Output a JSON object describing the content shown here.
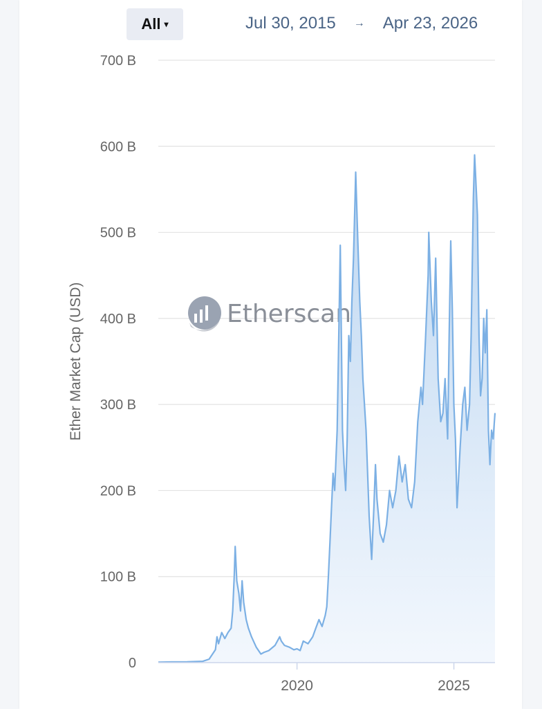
{
  "toolbar": {
    "range_label": "All",
    "range_caret": "▾",
    "date_from": "Jul 30, 2015",
    "date_arrow": "→",
    "date_to": "Apr 23, 2026"
  },
  "watermark": {
    "text": "Etherscan",
    "icon": "etherscan-logo-icon"
  },
  "colors": {
    "line": "#7cb0e4",
    "fill_top": "#b9d4f0",
    "fill_bottom": "#f2f7fd",
    "grid": "#e3e3e3",
    "axis": "#ccd6eb"
  },
  "chart_data": {
    "type": "area",
    "title": "",
    "xlabel": "",
    "ylabel": "Ether Market Cap (USD)",
    "ylim": [
      0,
      700
    ],
    "y_unit": "B USD",
    "yticks": [
      {
        "value": 0,
        "label": "0"
      },
      {
        "value": 100,
        "label": "100 B"
      },
      {
        "value": 200,
        "label": "200 B"
      },
      {
        "value": 300,
        "label": "300 B"
      },
      {
        "value": 400,
        "label": "400 B"
      },
      {
        "value": 500,
        "label": "500 B"
      },
      {
        "value": 600,
        "label": "600 B"
      },
      {
        "value": 700,
        "label": "700 B"
      }
    ],
    "xticks": [
      {
        "value": 2020.0,
        "label": "2020"
      },
      {
        "value": 2025.0,
        "label": "2025"
      }
    ],
    "xlim": [
      2015.58,
      2026.31
    ],
    "grid": true,
    "legend": "none",
    "series": [
      {
        "name": "Ether Market Cap",
        "x": [
          2015.58,
          2016.0,
          2016.5,
          2017.0,
          2017.2,
          2017.4,
          2017.45,
          2017.5,
          2017.6,
          2017.7,
          2017.8,
          2017.9,
          2017.95,
          2018.0,
          2018.03,
          2018.08,
          2018.15,
          2018.2,
          2018.25,
          2018.3,
          2018.38,
          2018.45,
          2018.55,
          2018.7,
          2018.85,
          2018.95,
          2019.1,
          2019.3,
          2019.45,
          2019.5,
          2019.6,
          2019.75,
          2019.9,
          2020.0,
          2020.1,
          2020.2,
          2020.35,
          2020.5,
          2020.6,
          2020.7,
          2020.8,
          2020.9,
          2020.95,
          2021.0,
          2021.05,
          2021.1,
          2021.15,
          2021.2,
          2021.28,
          2021.35,
          2021.38,
          2021.45,
          2021.5,
          2021.55,
          2021.6,
          2021.65,
          2021.7,
          2021.75,
          2021.8,
          2021.85,
          2021.87,
          2021.92,
          2022.0,
          2022.05,
          2022.1,
          2022.2,
          2022.3,
          2022.38,
          2022.45,
          2022.5,
          2022.55,
          2022.65,
          2022.75,
          2022.85,
          2022.95,
          2023.05,
          2023.15,
          2023.25,
          2023.35,
          2023.45,
          2023.55,
          2023.65,
          2023.75,
          2023.85,
          2023.95,
          2024.0,
          2024.1,
          2024.18,
          2024.2,
          2024.28,
          2024.35,
          2024.42,
          2024.5,
          2024.58,
          2024.65,
          2024.72,
          2024.8,
          2024.85,
          2024.9,
          2024.95,
          2025.0,
          2025.05,
          2025.1,
          2025.2,
          2025.28,
          2025.35,
          2025.42,
          2025.5,
          2025.55,
          2025.62,
          2025.66,
          2025.7,
          2025.75,
          2025.8,
          2025.85,
          2025.9,
          2025.95,
          2026.0,
          2026.05,
          2026.1,
          2026.15,
          2026.2,
          2026.25,
          2026.31
        ],
        "values": [
          0.5,
          0.8,
          1,
          1.5,
          4,
          15,
          30,
          22,
          35,
          28,
          35,
          40,
          60,
          100,
          135,
          95,
          80,
          60,
          95,
          70,
          50,
          40,
          30,
          18,
          10,
          12,
          14,
          20,
          30,
          25,
          20,
          18,
          15,
          16,
          14,
          25,
          22,
          30,
          40,
          50,
          42,
          55,
          65,
          100,
          140,
          180,
          220,
          200,
          270,
          420,
          485,
          270,
          230,
          200,
          260,
          380,
          350,
          420,
          470,
          540,
          570,
          510,
          420,
          380,
          330,
          270,
          170,
          120,
          180,
          230,
          190,
          150,
          140,
          160,
          200,
          180,
          200,
          240,
          210,
          230,
          190,
          180,
          210,
          280,
          320,
          300,
          380,
          450,
          500,
          420,
          380,
          470,
          330,
          280,
          290,
          330,
          260,
          380,
          490,
          410,
          300,
          260,
          180,
          250,
          300,
          320,
          270,
          300,
          380,
          540,
          590,
          560,
          520,
          380,
          310,
          330,
          400,
          360,
          410,
          270,
          230,
          270,
          260,
          290
        ]
      }
    ]
  }
}
